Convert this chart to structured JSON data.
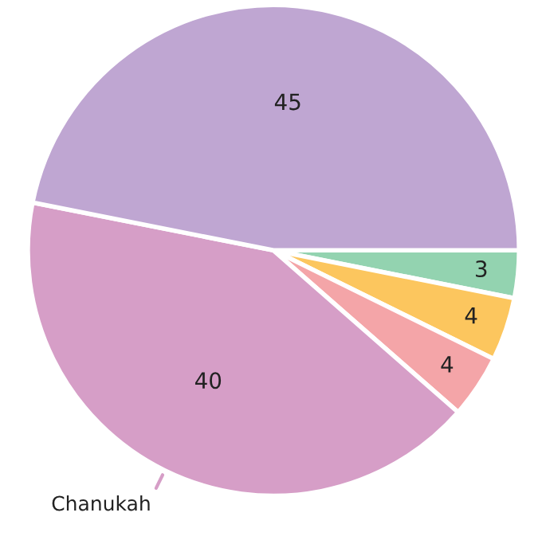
{
  "chart_data": {
    "type": "pie",
    "categories": [
      null,
      null,
      null,
      "Chanukah",
      null
    ],
    "values": [
      3,
      4,
      4,
      40,
      45
    ],
    "colors": [
      "#93d3b0",
      "#fcc65e",
      "#f4a5a8",
      "#d69ec7",
      "#bfa6d2"
    ],
    "data_labels": true
  }
}
